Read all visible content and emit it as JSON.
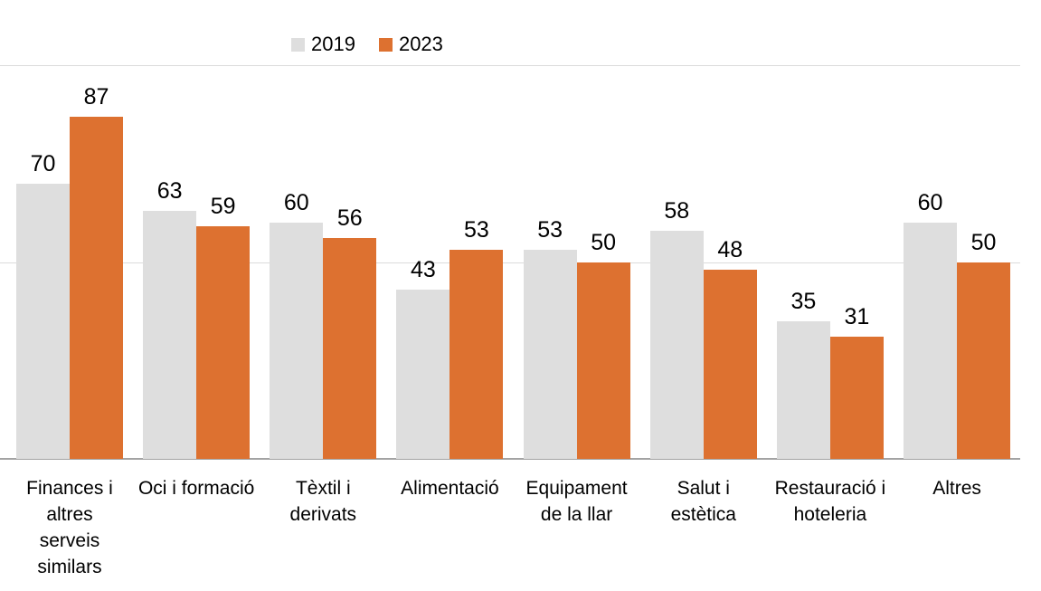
{
  "chart_data": {
    "type": "bar",
    "title": "",
    "xlabel": "",
    "ylabel": "",
    "categories": [
      "Finances i altres serveis similars",
      "Oci i formació",
      "Tèxtil i derivats",
      "Alimentació",
      "Equipament de la llar",
      "Salut i estètica",
      "Restauració i hoteleria",
      "Altres"
    ],
    "tick_label_lines": [
      [
        "Finances i",
        "altres",
        "serveis",
        "similars"
      ],
      [
        "Oci i formació"
      ],
      [
        "Tèxtil i",
        "derivats"
      ],
      [
        "Alimentació"
      ],
      [
        "Equipament",
        "de la llar"
      ],
      [
        "Salut i",
        "estètica"
      ],
      [
        "Restauració i",
        "hoteleria"
      ],
      [
        "Altres"
      ]
    ],
    "series": [
      {
        "name": "2019",
        "color": "#dedede",
        "values": [
          70,
          63,
          60,
          43,
          53,
          58,
          35,
          60
        ]
      },
      {
        "name": "2023",
        "color": "#dd7130",
        "values": [
          87,
          59,
          56,
          53,
          50,
          48,
          31,
          50
        ]
      }
    ],
    "ylim": [
      0,
      100
    ],
    "gridline_values": [
      50,
      100
    ],
    "grid": "horizontal",
    "legend_position": "top",
    "data_labels": true
  },
  "colors": {
    "axis_line": "#a3a3a3",
    "gridline": "#dbdbdb",
    "label_text": "#000000",
    "background": "#ffffff"
  }
}
